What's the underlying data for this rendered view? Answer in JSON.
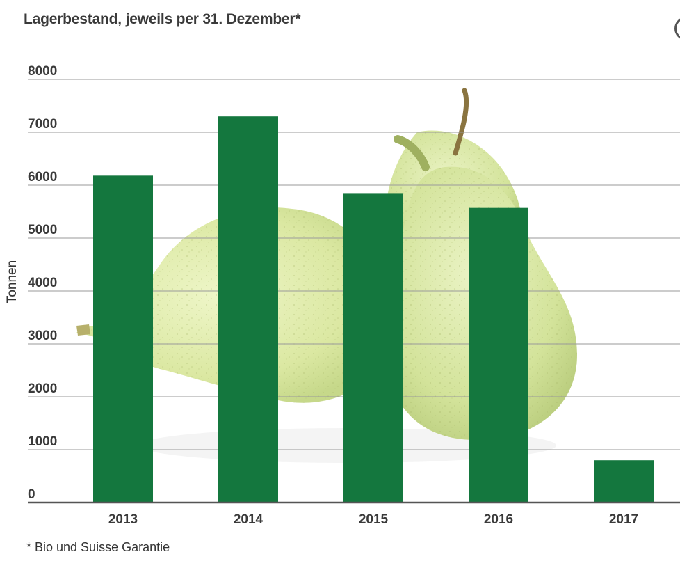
{
  "chart_data": {
    "type": "bar",
    "title": "Lagerbestand, jeweils per 31. Dezember*",
    "ylabel": "Tonnen",
    "xlabel": "",
    "categories": [
      "2013",
      "2014",
      "2015",
      "2016",
      "2017"
    ],
    "values": [
      6180,
      7300,
      5850,
      5570,
      800
    ],
    "ylim": [
      0,
      8000
    ],
    "yticks": [
      "0",
      "1000",
      "2000",
      "3000",
      "4000",
      "5000",
      "6000",
      "7000",
      "8000"
    ],
    "grid": true,
    "legend": "none",
    "bar_color": "#14773e",
    "footnote": "* Bio und Suisse Garantie",
    "background_image": "pears"
  }
}
